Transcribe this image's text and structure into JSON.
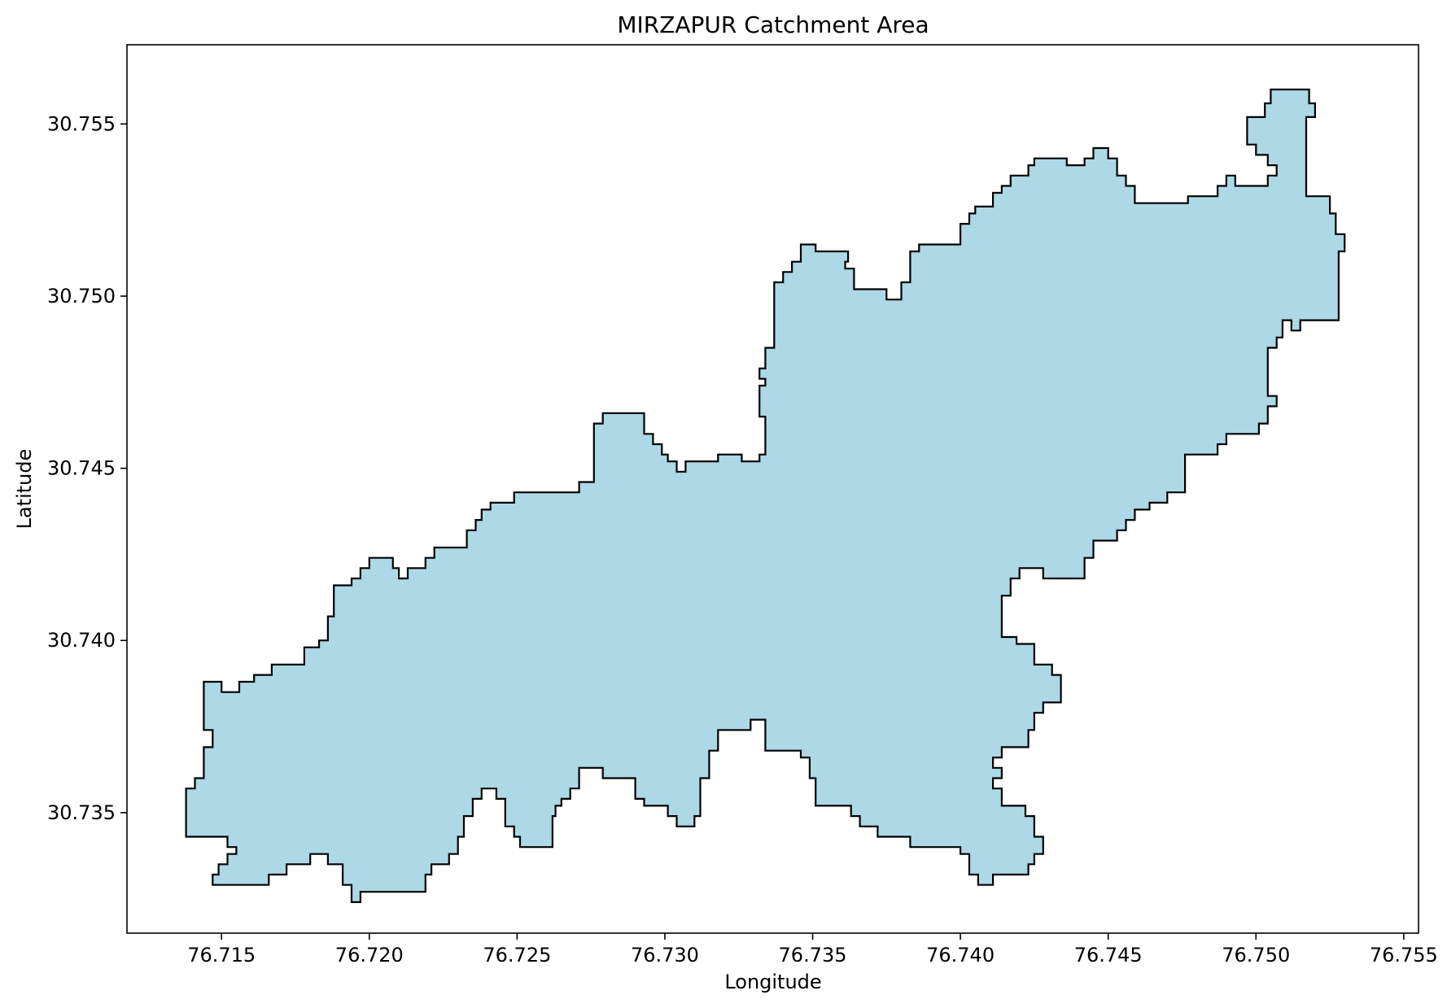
{
  "chart_data": {
    "type": "map",
    "title": "MIRZAPUR Catchment Area",
    "xlabel": "Longitude",
    "ylabel": "Latitude",
    "xlim": [
      76.7118,
      76.7555
    ],
    "ylim": [
      30.7315,
      30.7573
    ],
    "grid": false,
    "fill_color": "#add8e6",
    "edge_color": "#000000",
    "x_ticks": [
      {
        "value": 76.715,
        "label": "76.715"
      },
      {
        "value": 76.72,
        "label": "76.720"
      },
      {
        "value": 76.725,
        "label": "76.725"
      },
      {
        "value": 76.73,
        "label": "76.730"
      },
      {
        "value": 76.735,
        "label": "76.735"
      },
      {
        "value": 76.74,
        "label": "76.740"
      },
      {
        "value": 76.745,
        "label": "76.745"
      },
      {
        "value": 76.75,
        "label": "76.750"
      },
      {
        "value": 76.755,
        "label": "76.755"
      }
    ],
    "y_ticks": [
      {
        "value": 30.735,
        "label": "30.735"
      },
      {
        "value": 30.74,
        "label": "30.740"
      },
      {
        "value": 30.745,
        "label": "30.745"
      },
      {
        "value": 30.75,
        "label": "30.750"
      },
      {
        "value": 30.755,
        "label": "30.755"
      }
    ],
    "boundary": [
      [
        76.7138,
        30.7343
      ],
      [
        76.7138,
        30.7357
      ],
      [
        76.7141,
        30.7357
      ],
      [
        76.7141,
        30.736
      ],
      [
        76.7144,
        30.736
      ],
      [
        76.7144,
        30.7369
      ],
      [
        76.7147,
        30.7369
      ],
      [
        76.7147,
        30.7374
      ],
      [
        76.7144,
        30.7374
      ],
      [
        76.7144,
        30.7388
      ],
      [
        76.715,
        30.7388
      ],
      [
        76.715,
        30.7385
      ],
      [
        76.7156,
        30.7385
      ],
      [
        76.7156,
        30.7388
      ],
      [
        76.7161,
        30.7388
      ],
      [
        76.7161,
        30.739
      ],
      [
        76.7167,
        30.739
      ],
      [
        76.7167,
        30.7393
      ],
      [
        76.7178,
        30.7393
      ],
      [
        76.7178,
        30.7398
      ],
      [
        76.7183,
        30.7398
      ],
      [
        76.7183,
        30.74
      ],
      [
        76.7186,
        30.74
      ],
      [
        76.7186,
        30.7407
      ],
      [
        76.7188,
        30.7407
      ],
      [
        76.7188,
        30.7416
      ],
      [
        76.7194,
        30.7416
      ],
      [
        76.7194,
        30.7418
      ],
      [
        76.7197,
        30.7418
      ],
      [
        76.7197,
        30.7421
      ],
      [
        76.72,
        30.7421
      ],
      [
        76.72,
        30.7424
      ],
      [
        76.7208,
        30.7424
      ],
      [
        76.7208,
        30.7421
      ],
      [
        76.721,
        30.7421
      ],
      [
        76.721,
        30.7418
      ],
      [
        76.7213,
        30.7418
      ],
      [
        76.7213,
        30.7421
      ],
      [
        76.7219,
        30.7421
      ],
      [
        76.7219,
        30.7424
      ],
      [
        76.7222,
        30.7424
      ],
      [
        76.7222,
        30.7427
      ],
      [
        76.7233,
        30.7427
      ],
      [
        76.7233,
        30.7432
      ],
      [
        76.7236,
        30.7432
      ],
      [
        76.7236,
        30.7435
      ],
      [
        76.7238,
        30.7435
      ],
      [
        76.7238,
        30.7438
      ],
      [
        76.7241,
        30.7438
      ],
      [
        76.7241,
        30.744
      ],
      [
        76.7249,
        30.744
      ],
      [
        76.7249,
        30.7443
      ],
      [
        76.7271,
        30.7443
      ],
      [
        76.7271,
        30.7446
      ],
      [
        76.7276,
        30.7446
      ],
      [
        76.7276,
        30.7463
      ],
      [
        76.7279,
        30.7463
      ],
      [
        76.7279,
        30.7466
      ],
      [
        76.7293,
        30.7466
      ],
      [
        76.7293,
        30.746
      ],
      [
        76.7296,
        30.746
      ],
      [
        76.7296,
        30.7457
      ],
      [
        76.7299,
        30.7457
      ],
      [
        76.7299,
        30.7454
      ],
      [
        76.7301,
        30.7454
      ],
      [
        76.7301,
        30.7452
      ],
      [
        76.7304,
        30.7452
      ],
      [
        76.7304,
        30.7449
      ],
      [
        76.7307,
        30.7449
      ],
      [
        76.7307,
        30.7452
      ],
      [
        76.7318,
        30.7452
      ],
      [
        76.7318,
        30.7454
      ],
      [
        76.7326,
        30.7454
      ],
      [
        76.7326,
        30.7452
      ],
      [
        76.7332,
        30.7452
      ],
      [
        76.7332,
        30.7454
      ],
      [
        76.7334,
        30.7454
      ],
      [
        76.7334,
        30.7465
      ],
      [
        76.7332,
        30.7465
      ],
      [
        76.7332,
        30.7474
      ],
      [
        76.7334,
        30.7474
      ],
      [
        76.7334,
        30.7476
      ],
      [
        76.7332,
        30.7476
      ],
      [
        76.7332,
        30.7479
      ],
      [
        76.7334,
        30.7479
      ],
      [
        76.7334,
        30.7485
      ],
      [
        76.7337,
        30.7485
      ],
      [
        76.7337,
        30.7504
      ],
      [
        76.734,
        30.7504
      ],
      [
        76.734,
        30.7507
      ],
      [
        76.7343,
        30.7507
      ],
      [
        76.7343,
        30.751
      ],
      [
        76.7346,
        30.751
      ],
      [
        76.7346,
        30.7515
      ],
      [
        76.7351,
        30.7515
      ],
      [
        76.7351,
        30.7513
      ],
      [
        76.7362,
        30.7513
      ],
      [
        76.7362,
        30.751
      ],
      [
        76.7361,
        30.751
      ],
      [
        76.7361,
        30.7508
      ],
      [
        76.7364,
        30.7508
      ],
      [
        76.7364,
        30.7502
      ],
      [
        76.7375,
        30.7502
      ],
      [
        76.7375,
        30.7499
      ],
      [
        76.738,
        30.7499
      ],
      [
        76.738,
        30.7504
      ],
      [
        76.7383,
        30.7504
      ],
      [
        76.7383,
        30.7513
      ],
      [
        76.7386,
        30.7513
      ],
      [
        76.7386,
        30.7515
      ],
      [
        76.74,
        30.7515
      ],
      [
        76.74,
        30.7521
      ],
      [
        76.7403,
        30.7521
      ],
      [
        76.7403,
        30.7524
      ],
      [
        76.7405,
        30.7524
      ],
      [
        76.7405,
        30.7526
      ],
      [
        76.7411,
        30.7526
      ],
      [
        76.7411,
        30.753
      ],
      [
        76.7414,
        30.753
      ],
      [
        76.7414,
        30.7532
      ],
      [
        76.7417,
        30.7532
      ],
      [
        76.7417,
        30.7535
      ],
      [
        76.7423,
        30.7535
      ],
      [
        76.7423,
        30.7538
      ],
      [
        76.7425,
        30.7538
      ],
      [
        76.7425,
        30.754
      ],
      [
        76.7436,
        30.754
      ],
      [
        76.7436,
        30.7538
      ],
      [
        76.7442,
        30.7538
      ],
      [
        76.7442,
        30.754
      ],
      [
        76.7445,
        30.754
      ],
      [
        76.7445,
        30.7543
      ],
      [
        76.745,
        30.7543
      ],
      [
        76.745,
        30.754
      ],
      [
        76.7453,
        30.754
      ],
      [
        76.7453,
        30.7535
      ],
      [
        76.7456,
        30.7535
      ],
      [
        76.7456,
        30.7532
      ],
      [
        76.7459,
        30.7532
      ],
      [
        76.7459,
        30.7527
      ],
      [
        76.7477,
        30.7527
      ],
      [
        76.7477,
        30.7529
      ],
      [
        76.7487,
        30.7529
      ],
      [
        76.7487,
        30.7532
      ],
      [
        76.749,
        30.7532
      ],
      [
        76.749,
        30.7535
      ],
      [
        76.7493,
        30.7535
      ],
      [
        76.7493,
        30.7532
      ],
      [
        76.7504,
        30.7532
      ],
      [
        76.7504,
        30.7535
      ],
      [
        76.7507,
        30.7535
      ],
      [
        76.7507,
        30.7538
      ],
      [
        76.7504,
        30.7538
      ],
      [
        76.7504,
        30.7541
      ],
      [
        76.75,
        30.7541
      ],
      [
        76.75,
        30.7544
      ],
      [
        76.7497,
        30.7544
      ],
      [
        76.7497,
        30.7552
      ],
      [
        76.7503,
        30.7552
      ],
      [
        76.7503,
        30.7556
      ],
      [
        76.7505,
        30.7556
      ],
      [
        76.7505,
        30.756
      ],
      [
        76.7518,
        30.756
      ],
      [
        76.7518,
        30.7556
      ],
      [
        76.752,
        30.7556
      ],
      [
        76.752,
        30.7552
      ],
      [
        76.7517,
        30.7552
      ],
      [
        76.7517,
        30.7529
      ],
      [
        76.7525,
        30.7529
      ],
      [
        76.7525,
        30.7524
      ],
      [
        76.7527,
        30.7524
      ],
      [
        76.7527,
        30.7518
      ],
      [
        76.753,
        30.7518
      ],
      [
        76.753,
        30.7516
      ],
      [
        76.753,
        30.7513
      ],
      [
        76.7528,
        30.7513
      ],
      [
        76.7528,
        30.7493
      ],
      [
        76.7515,
        30.7493
      ],
      [
        76.7515,
        30.749
      ],
      [
        76.7512,
        30.749
      ],
      [
        76.7512,
        30.7493
      ],
      [
        76.7509,
        30.7493
      ],
      [
        76.7509,
        30.7488
      ],
      [
        76.7507,
        30.7488
      ],
      [
        76.7507,
        30.7485
      ],
      [
        76.7504,
        30.7485
      ],
      [
        76.7504,
        30.7471
      ],
      [
        76.7507,
        30.7471
      ],
      [
        76.7507,
        30.7468
      ],
      [
        76.7504,
        30.7468
      ],
      [
        76.7504,
        30.7463
      ],
      [
        76.7501,
        30.7463
      ],
      [
        76.7501,
        30.746
      ],
      [
        76.749,
        30.746
      ],
      [
        76.749,
        30.7457
      ],
      [
        76.7487,
        30.7457
      ],
      [
        76.7487,
        30.7454
      ],
      [
        76.7476,
        30.7454
      ],
      [
        76.7476,
        30.7443
      ],
      [
        76.747,
        30.7443
      ],
      [
        76.747,
        30.744
      ],
      [
        76.7464,
        30.744
      ],
      [
        76.7464,
        30.7438
      ],
      [
        76.7459,
        30.7438
      ],
      [
        76.7459,
        30.7435
      ],
      [
        76.7456,
        30.7435
      ],
      [
        76.7456,
        30.7432
      ],
      [
        76.7453,
        30.7432
      ],
      [
        76.7453,
        30.7429
      ],
      [
        76.7445,
        30.7429
      ],
      [
        76.7445,
        30.7424
      ],
      [
        76.7442,
        30.7424
      ],
      [
        76.7442,
        30.7418
      ],
      [
        76.7428,
        30.7418
      ],
      [
        76.7428,
        30.7421
      ],
      [
        76.742,
        30.7421
      ],
      [
        76.742,
        30.7418
      ],
      [
        76.7417,
        30.7418
      ],
      [
        76.7417,
        30.7413
      ],
      [
        76.7414,
        30.7413
      ],
      [
        76.7414,
        30.7401
      ],
      [
        76.7419,
        30.7401
      ],
      [
        76.7419,
        30.7399
      ],
      [
        76.7425,
        30.7399
      ],
      [
        76.7425,
        30.7393
      ],
      [
        76.7431,
        30.7393
      ],
      [
        76.7431,
        30.739
      ],
      [
        76.7434,
        30.739
      ],
      [
        76.7434,
        30.7382
      ],
      [
        76.7428,
        30.7382
      ],
      [
        76.7428,
        30.7379
      ],
      [
        76.7425,
        30.7379
      ],
      [
        76.7425,
        30.7374
      ],
      [
        76.7423,
        30.7374
      ],
      [
        76.7423,
        30.7369
      ],
      [
        76.7414,
        30.7369
      ],
      [
        76.7414,
        30.7366
      ],
      [
        76.7411,
        30.7366
      ],
      [
        76.7411,
        30.7363
      ],
      [
        76.7414,
        30.7363
      ],
      [
        76.7414,
        30.736
      ],
      [
        76.7411,
        30.736
      ],
      [
        76.7411,
        30.7357
      ],
      [
        76.7414,
        30.7357
      ],
      [
        76.7414,
        30.7352
      ],
      [
        76.7422,
        30.7352
      ],
      [
        76.7422,
        30.7349
      ],
      [
        76.7425,
        30.7349
      ],
      [
        76.7425,
        30.7343
      ],
      [
        76.7428,
        30.7343
      ],
      [
        76.7428,
        30.7338
      ],
      [
        76.7425,
        30.7338
      ],
      [
        76.7425,
        30.7335
      ],
      [
        76.7423,
        30.7335
      ],
      [
        76.7423,
        30.7332
      ],
      [
        76.7411,
        30.7332
      ],
      [
        76.7411,
        30.7329
      ],
      [
        76.7406,
        30.7329
      ],
      [
        76.7406,
        30.7332
      ],
      [
        76.7403,
        30.7332
      ],
      [
        76.7403,
        30.7338
      ],
      [
        76.74,
        30.7338
      ],
      [
        76.74,
        30.734
      ],
      [
        76.7383,
        30.734
      ],
      [
        76.7383,
        30.7343
      ],
      [
        76.7372,
        30.7343
      ],
      [
        76.7372,
        30.7346
      ],
      [
        76.7366,
        30.7346
      ],
      [
        76.7366,
        30.7349
      ],
      [
        76.7363,
        30.7349
      ],
      [
        76.7363,
        30.7352
      ],
      [
        76.7351,
        30.7352
      ],
      [
        76.7351,
        30.736
      ],
      [
        76.7349,
        30.736
      ],
      [
        76.7349,
        30.7366
      ],
      [
        76.7346,
        30.7366
      ],
      [
        76.7346,
        30.7368
      ],
      [
        76.7334,
        30.7368
      ],
      [
        76.7334,
        30.7377
      ],
      [
        76.7329,
        30.7377
      ],
      [
        76.7329,
        30.7374
      ],
      [
        76.7318,
        30.7374
      ],
      [
        76.7318,
        30.7368
      ],
      [
        76.7315,
        30.7368
      ],
      [
        76.7315,
        30.736
      ],
      [
        76.7312,
        30.736
      ],
      [
        76.7312,
        30.7349
      ],
      [
        76.731,
        30.7349
      ],
      [
        76.731,
        30.7346
      ],
      [
        76.7304,
        30.7346
      ],
      [
        76.7304,
        30.7349
      ],
      [
        76.7301,
        30.7349
      ],
      [
        76.7301,
        30.7352
      ],
      [
        76.7293,
        30.7352
      ],
      [
        76.7293,
        30.7354
      ],
      [
        76.729,
        30.7354
      ],
      [
        76.729,
        30.736
      ],
      [
        76.7279,
        30.736
      ],
      [
        76.7279,
        30.7363
      ],
      [
        76.7271,
        30.7363
      ],
      [
        76.7271,
        30.7357
      ],
      [
        76.7268,
        30.7357
      ],
      [
        76.7268,
        30.7354
      ],
      [
        76.7265,
        30.7354
      ],
      [
        76.7265,
        30.7352
      ],
      [
        76.7263,
        30.7352
      ],
      [
        76.7263,
        30.7349
      ],
      [
        76.7262,
        30.7349
      ],
      [
        76.7262,
        30.734
      ],
      [
        76.7251,
        30.734
      ],
      [
        76.7251,
        30.7343
      ],
      [
        76.7249,
        30.7343
      ],
      [
        76.7249,
        30.7346
      ],
      [
        76.7246,
        30.7346
      ],
      [
        76.7246,
        30.7354
      ],
      [
        76.7243,
        30.7354
      ],
      [
        76.7243,
        30.7357
      ],
      [
        76.7238,
        30.7357
      ],
      [
        76.7238,
        30.7354
      ],
      [
        76.7235,
        30.7354
      ],
      [
        76.7235,
        30.7349
      ],
      [
        76.7232,
        30.7349
      ],
      [
        76.7232,
        30.7343
      ],
      [
        76.723,
        30.7343
      ],
      [
        76.723,
        30.7338
      ],
      [
        76.7227,
        30.7338
      ],
      [
        76.7227,
        30.7335
      ],
      [
        76.7221,
        30.7335
      ],
      [
        76.7221,
        30.7332
      ],
      [
        76.7219,
        30.7332
      ],
      [
        76.7219,
        30.7327
      ],
      [
        76.7197,
        30.7327
      ],
      [
        76.7197,
        30.7324
      ],
      [
        76.7194,
        30.7324
      ],
      [
        76.7194,
        30.7329
      ],
      [
        76.7191,
        30.7329
      ],
      [
        76.7191,
        30.7335
      ],
      [
        76.7186,
        30.7335
      ],
      [
        76.7186,
        30.7338
      ],
      [
        76.718,
        30.7338
      ],
      [
        76.718,
        30.7335
      ],
      [
        76.7172,
        30.7335
      ],
      [
        76.7172,
        30.7332
      ],
      [
        76.7166,
        30.7332
      ],
      [
        76.7166,
        30.7329
      ],
      [
        76.7147,
        30.7329
      ],
      [
        76.7147,
        30.7332
      ],
      [
        76.7149,
        30.7332
      ],
      [
        76.7149,
        30.7335
      ],
      [
        76.7152,
        30.7335
      ],
      [
        76.7152,
        30.7338
      ],
      [
        76.7155,
        30.7338
      ],
      [
        76.7155,
        30.734
      ],
      [
        76.7152,
        30.734
      ],
      [
        76.7152,
        30.7343
      ],
      [
        76.7138,
        30.7343
      ]
    ]
  }
}
